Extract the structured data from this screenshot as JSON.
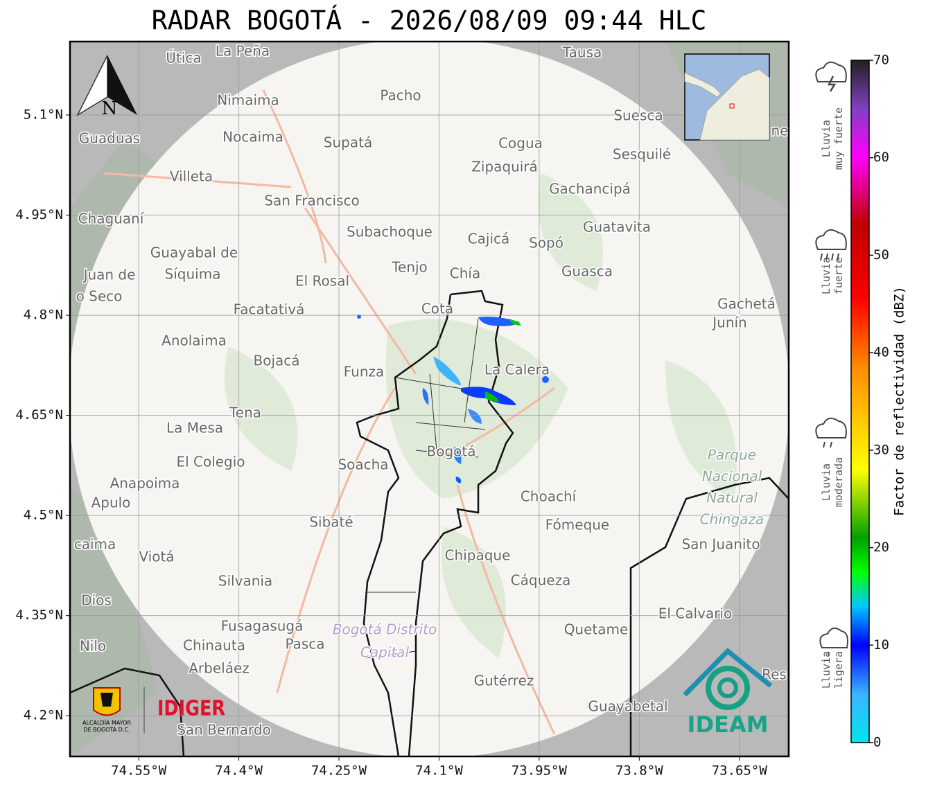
{
  "title": "RADAR BOGOTÁ - 2026/08/09 09:44 HLC",
  "map": {
    "xlim": [
      -74.653,
      -73.576
    ],
    "ylim": [
      4.139,
      5.21
    ],
    "xticks": [
      {
        "value": -74.55,
        "label": "74.55°W"
      },
      {
        "value": -74.4,
        "label": "74.4°W"
      },
      {
        "value": -74.25,
        "label": "74.25°W"
      },
      {
        "value": -74.1,
        "label": "74.1°W"
      },
      {
        "value": -73.95,
        "label": "73.95°W"
      },
      {
        "value": -73.8,
        "label": "73.8°W"
      },
      {
        "value": -73.65,
        "label": "73.65°W"
      }
    ],
    "yticks": [
      {
        "value": 5.1,
        "label": "5.1°N"
      },
      {
        "value": 4.95,
        "label": "4.95°N"
      },
      {
        "value": 4.8,
        "label": "4.8°N"
      },
      {
        "value": 4.65,
        "label": "4.65°N"
      },
      {
        "value": 4.5,
        "label": "4.5°N"
      },
      {
        "value": 4.35,
        "label": "4.35°N"
      },
      {
        "value": 4.2,
        "label": "4.2°N"
      }
    ],
    "grid": true,
    "north_label": "N",
    "places": [
      "Útica",
      "La Peña",
      "Tausa",
      "Pacho",
      "Nimaima",
      "Suesca",
      "Guaduas",
      "Nocaima",
      "Supatá",
      "Cogua",
      "Sesquilé",
      "Zipaquirá",
      "Villeta",
      "Gachancipá",
      "San Francisco",
      "Chaguaní",
      "Guatavita",
      "Subachoque",
      "Cajicá",
      "Sopó",
      "Guayabal de",
      "Síquima",
      "Tenjo",
      "Chía",
      "Guasca",
      "Juan de",
      "El Rosal",
      "o Seco",
      "Facatativá",
      "Cota",
      "Gachetá",
      "Junín",
      "Anolaima",
      "Bojacá",
      "Funza",
      "La Calera",
      "Tena",
      "La Mesa",
      "Bogotá",
      "Parque",
      "Nacional",
      "Natural",
      "Chingaza",
      "El Colegio",
      "Soacha",
      "Anapoima",
      "Apulo",
      "Choachí",
      "Sibaté",
      "Fómeque",
      "San Juanito",
      "caima",
      "Viotá",
      "Chipaque",
      "Silvania",
      "Cáqueza",
      "Dios",
      "El Calvario",
      "Fusagasugá",
      "Bogotá Distrito",
      "Capital",
      "Quetame",
      "Nilo",
      "Chinauta",
      "Pasca",
      "Arbeláez",
      "Gutérrez",
      "Guayabetal",
      "San Bernardo",
      "Res",
      "ne"
    ]
  },
  "logos": {
    "alcaldia": "ALCALDÍA MAYOR",
    "alcaldia_2": "DE BOGOTÁ D.C.",
    "idiger": "IDIGER",
    "ideam": "IDEAM"
  },
  "colorbar": {
    "label": "Factor de reflectividad (dBZ)",
    "ylim": [
      0,
      70
    ],
    "yticks": [
      0,
      10,
      20,
      30,
      40,
      50,
      60,
      70
    ]
  },
  "rain_legend": [
    [
      "Lluvia",
      "muy fuerte"
    ],
    [
      "Lluvia",
      "fuerte"
    ],
    [
      "Lluvia",
      "moderada"
    ],
    [
      "Lluvia",
      "ligera"
    ]
  ]
}
